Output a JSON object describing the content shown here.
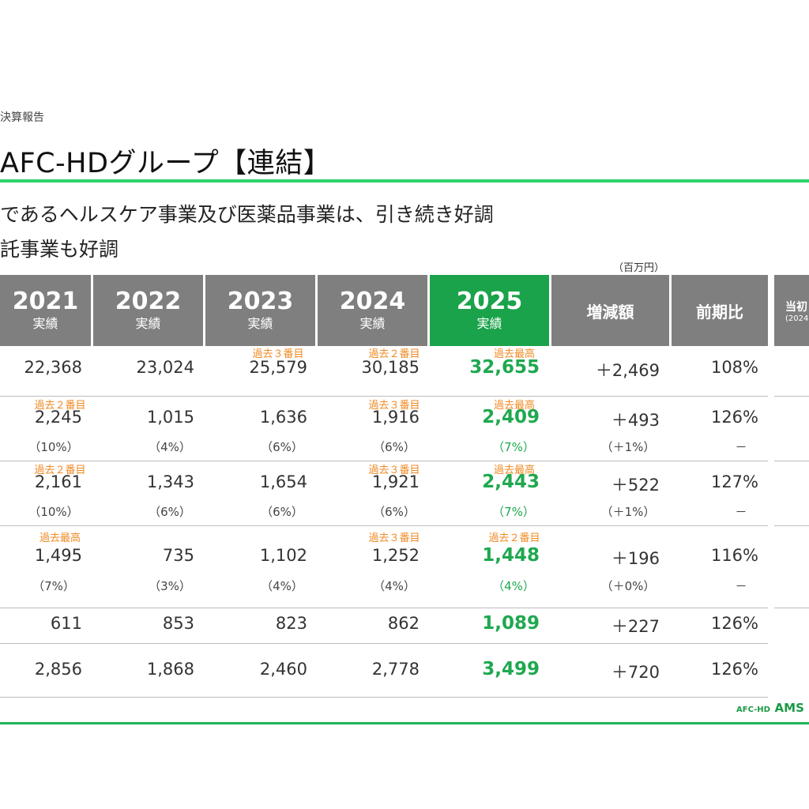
{
  "breadcrumb": "決算報告",
  "title": "AFC-HDグループ【連結】",
  "bullets": [
    "であるヘルスケア事業及び医薬品事業は、引き続き好調",
    "託事業も好調"
  ],
  "unit": "（百万円）",
  "columns": [
    {
      "year": "2021",
      "sub": "実績"
    },
    {
      "year": "2022",
      "sub": "実績"
    },
    {
      "year": "2023",
      "sub": "実績"
    },
    {
      "year": "2024",
      "sub": "実績"
    },
    {
      "year": "2025",
      "sub": "実績"
    },
    {
      "label": "増減額"
    },
    {
      "label": "前期比"
    },
    {
      "label": "当初",
      "sub": "(2024"
    }
  ],
  "rows": [
    {
      "values": [
        "22,368",
        "23,024",
        "25,579",
        "30,185",
        "32,655",
        "＋2,469",
        "108%"
      ],
      "notes": [
        "",
        "",
        "過去３番目",
        "過去２番目",
        "過去最高"
      ]
    },
    {
      "values": [
        "2,245",
        "1,015",
        "1,636",
        "1,916",
        "2,409",
        "＋493",
        "126%"
      ],
      "pcts": [
        "（10%）",
        "（4%）",
        "（6%）",
        "（6%）",
        "（7%）",
        "（＋1%）",
        "－"
      ],
      "notes": [
        "過去２番目",
        "",
        "",
        "過去３番目",
        "過去最高"
      ]
    },
    {
      "values": [
        "2,161",
        "1,343",
        "1,654",
        "1,921",
        "2,443",
        "＋522",
        "127%"
      ],
      "pcts": [
        "（10%）",
        "（6%）",
        "（6%）",
        "（6%）",
        "（7%）",
        "（＋1%）",
        "－"
      ],
      "notes": [
        "過去２番目",
        "",
        "",
        "過去３番目",
        "過去最高"
      ]
    },
    {
      "values": [
        "1,495",
        "735",
        "1,102",
        "1,252",
        "1,448",
        "＋196",
        "116%"
      ],
      "pcts": [
        "（7%）",
        "（3%）",
        "（4%）",
        "（4%）",
        "（4%）",
        "（＋0%）",
        "－"
      ],
      "notes": [
        "過去最高",
        "",
        "",
        "過去３番目",
        "過去２番目"
      ]
    },
    {
      "values": [
        "611",
        "853",
        "823",
        "862",
        "1,089",
        "＋227",
        "126%"
      ]
    },
    {
      "values": [
        "2,856",
        "1,868",
        "2,460",
        "2,778",
        "3,499",
        "＋720",
        "126%"
      ]
    }
  ],
  "footer": {
    "logo_small": "AFC-HD",
    "logo_large": "AMS L"
  },
  "colors": {
    "accent_green": "#1fa84f",
    "header_gray": "#7f7f7f",
    "note_orange": "#f08a24",
    "rule_green": "#2fd36a"
  }
}
